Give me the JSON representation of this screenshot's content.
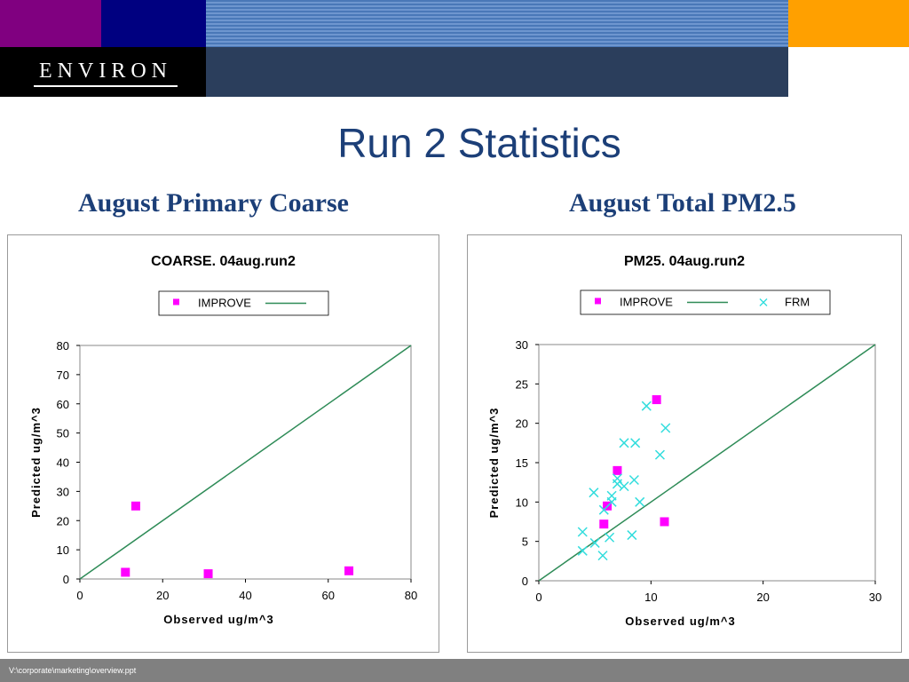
{
  "header": {
    "logo_text": "ENVIRON",
    "colors": {
      "purple": "#800080",
      "navy": "#000080",
      "orange": "#ffa000",
      "dark": "#2b3e5c"
    }
  },
  "slide": {
    "title": "Run 2 Statistics",
    "subtitle_left": "August Primary Coarse",
    "subtitle_right": "August Total PM2.5"
  },
  "footer": {
    "path": "V:\\corporate\\marketing\\overview.ppt"
  },
  "chart_data": [
    {
      "type": "scatter",
      "title": "COARSE.  04aug.run2",
      "xlabel": "Observed ug/m^3",
      "ylabel": "Predicted ug/m^3",
      "xlim": [
        0,
        80
      ],
      "ylim": [
        0,
        80
      ],
      "xticks": [
        0,
        20,
        40,
        60,
        80
      ],
      "yticks": [
        0,
        10,
        20,
        30,
        40,
        50,
        60,
        70,
        80
      ],
      "grid": false,
      "legend_position": "top",
      "series": [
        {
          "name": "IMPROVE",
          "marker": "square",
          "color": "#ff00ff",
          "points": [
            [
              11,
              2.3
            ],
            [
              13.5,
              25
            ],
            [
              31,
              1.8
            ],
            [
              65,
              2.8
            ]
          ]
        }
      ],
      "one_to_one_line": {
        "color": "#2e8b57"
      }
    },
    {
      "type": "scatter",
      "title": "PM25.  04aug.run2",
      "xlabel": "Observed ug/m^3",
      "ylabel": "Predicted ug/m^3",
      "xlim": [
        0,
        30
      ],
      "ylim": [
        0,
        30
      ],
      "xticks": [
        0,
        10,
        20,
        30
      ],
      "yticks": [
        0,
        5,
        10,
        15,
        20,
        25,
        30
      ],
      "grid": false,
      "legend_position": "top",
      "series": [
        {
          "name": "IMPROVE",
          "marker": "square",
          "color": "#ff00ff",
          "points": [
            [
              5.8,
              7.2
            ],
            [
              6.1,
              9.5
            ],
            [
              7,
              14
            ],
            [
              10.5,
              23
            ],
            [
              11.2,
              7.5
            ]
          ]
        },
        {
          "name": "FRM",
          "marker": "x",
          "color": "#33dddd",
          "points": [
            [
              3.9,
              6.2
            ],
            [
              3.9,
              3.8
            ],
            [
              4.9,
              11.2
            ],
            [
              5,
              4.8
            ],
            [
              5.7,
              3.2
            ],
            [
              5.8,
              9
            ],
            [
              6.3,
              5.5
            ],
            [
              6.5,
              10
            ],
            [
              6.5,
              10.8
            ],
            [
              7,
              12.3
            ],
            [
              7,
              13
            ],
            [
              7.6,
              12
            ],
            [
              7.6,
              17.5
            ],
            [
              8.3,
              5.8
            ],
            [
              8.5,
              12.8
            ],
            [
              8.6,
              17.5
            ],
            [
              9,
              10
            ],
            [
              9.6,
              22.2
            ],
            [
              10.8,
              16
            ],
            [
              11.3,
              19.4
            ]
          ]
        }
      ],
      "one_to_one_line": {
        "color": "#2e8b57"
      }
    }
  ]
}
